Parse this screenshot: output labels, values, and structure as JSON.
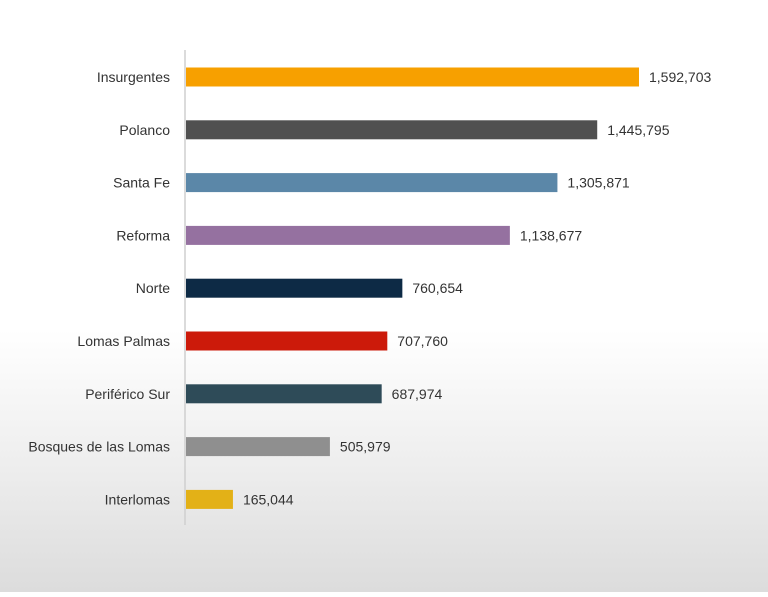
{
  "chart_data": {
    "type": "bar",
    "orientation": "horizontal",
    "title": "",
    "xlabel": "",
    "ylabel": "",
    "grid": false,
    "legend": "none",
    "categories": [
      "Insurgentes",
      "Polanco",
      "Santa Fe",
      "Reforma",
      "Norte",
      "Lomas Palmas",
      "Periférico Sur",
      "Bosques de las Lomas",
      "Interlomas"
    ],
    "values": [
      1592703,
      1445795,
      1305871,
      1138677,
      760654,
      707760,
      687974,
      505979,
      165044
    ],
    "value_labels": [
      "1,592,703",
      "1,445,795",
      "1,305,871",
      "1,138,677",
      "760,654",
      "707,760",
      "687,974",
      "505,979",
      "165,044"
    ],
    "colors": [
      "#f7a000",
      "#505050",
      "#5b87a8",
      "#9571a0",
      "#0d2a45",
      "#cc1a0a",
      "#2e4b58",
      "#8f8f8f",
      "#e3b117"
    ],
    "xlim": [
      0,
      1800000
    ]
  }
}
